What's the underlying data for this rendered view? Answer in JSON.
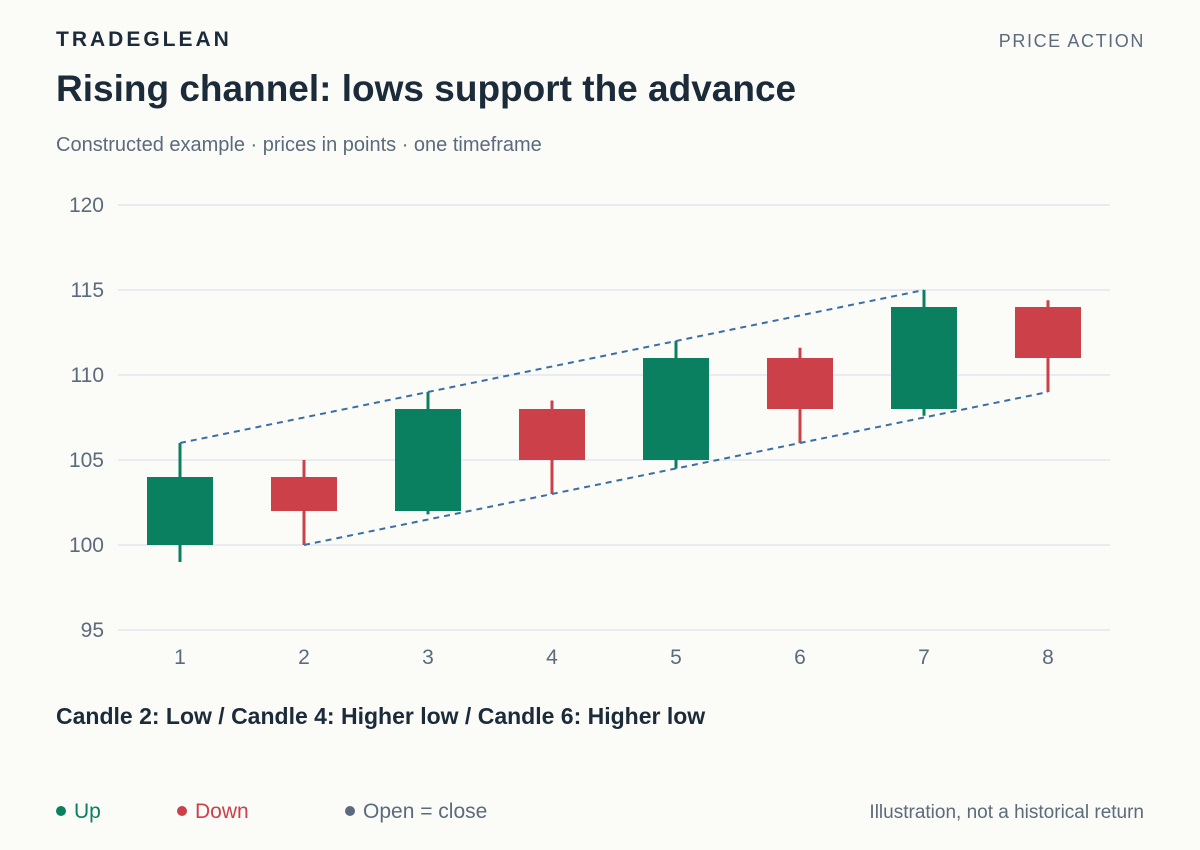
{
  "header": {
    "brand": "TRADEGLEAN",
    "section": "PRICE ACTION",
    "title": "Rising channel: lows support the advance",
    "subtitle": "Constructed example · prices in points · one timeframe"
  },
  "annotation": "Candle 2: Low / Candle 4: Higher low / Candle 6: Higher low",
  "legend": [
    {
      "label": "Up",
      "color": "#0b8060"
    },
    {
      "label": "Down",
      "color": "#cc4149"
    },
    {
      "label": "Open = close",
      "color": "#5b6b7c"
    }
  ],
  "footnote": "Illustration, not a historical return",
  "chart_data": {
    "type": "candlestick",
    "ylim": [
      95,
      120
    ],
    "yticks": [
      95,
      100,
      105,
      110,
      115,
      120
    ],
    "categories": [
      "1",
      "2",
      "3",
      "4",
      "5",
      "6",
      "7",
      "8"
    ],
    "candles": [
      {
        "x": "1",
        "open": 100,
        "high": 106,
        "low": 99,
        "close": 104
      },
      {
        "x": "2",
        "open": 104,
        "high": 105,
        "low": 100,
        "close": 102
      },
      {
        "x": "3",
        "open": 102,
        "high": 109,
        "low": 101.8,
        "close": 108
      },
      {
        "x": "4",
        "open": 108,
        "high": 108.5,
        "low": 103,
        "close": 105
      },
      {
        "x": "5",
        "open": 105,
        "high": 112,
        "low": 104.5,
        "close": 111
      },
      {
        "x": "6",
        "open": 111,
        "high": 111.6,
        "low": 106,
        "close": 108
      },
      {
        "x": "7",
        "open": 108,
        "high": 115,
        "low": 107.6,
        "close": 114
      },
      {
        "x": "8",
        "open": 114,
        "high": 114.4,
        "low": 109,
        "close": 111
      }
    ],
    "channel": {
      "upper": [
        {
          "x": "1",
          "y": 106
        },
        {
          "x": "7",
          "y": 115
        }
      ],
      "lower": [
        {
          "x": "2",
          "y": 100
        },
        {
          "x": "8",
          "y": 109
        }
      ]
    },
    "colors": {
      "up": "#0b8060",
      "down": "#cc4149",
      "channel": "#3a6ea5",
      "grid": "#dde3ea",
      "axis_text": "#5b6b7c"
    },
    "grid": true,
    "legend_position": "bottom-left"
  }
}
